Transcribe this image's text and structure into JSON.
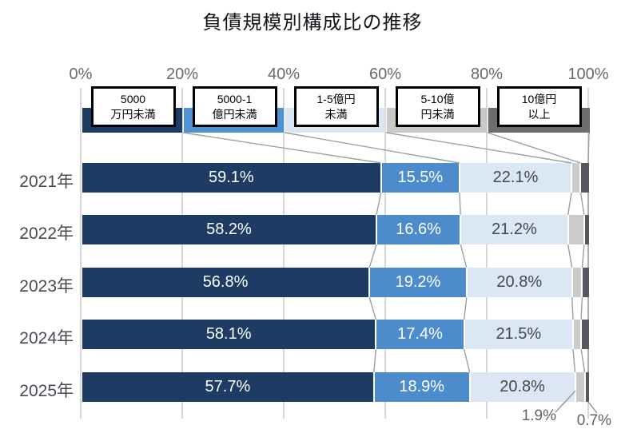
{
  "title": "負債規模別構成比の推移",
  "chart_data": {
    "type": "bar",
    "orientation": "horizontal",
    "stacked": true,
    "unit": "%",
    "title": "負債規模別構成比の推移",
    "categories": [
      "2021年",
      "2022年",
      "2023年",
      "2024年",
      "2025年"
    ],
    "series": [
      {
        "name": "5000万円未満",
        "legend_label_lines": [
          "5000",
          "万円未満"
        ],
        "color": "#1e3c63",
        "legend_color": "#1e3c63",
        "label_color": "#ffffff",
        "values": [
          59.1,
          58.2,
          56.8,
          58.1,
          57.7
        ],
        "data_labels": [
          "59.1%",
          "58.2%",
          "56.8%",
          "58.1%",
          "57.7%"
        ]
      },
      {
        "name": "5000-1億円未満",
        "legend_label_lines": [
          "5000-1",
          "億円未満"
        ],
        "color": "#4c8ccd",
        "legend_color": "#4f93d4",
        "label_color": "#ffffff",
        "values": [
          15.5,
          16.6,
          19.2,
          17.4,
          18.9
        ],
        "data_labels": [
          "15.5%",
          "16.6%",
          "19.2%",
          "17.4%",
          "18.9%"
        ]
      },
      {
        "name": "1-5億円未満",
        "legend_label_lines": [
          "1-5億円",
          "未満"
        ],
        "color": "#dbe7f4",
        "legend_color": "#d9e5f2",
        "label_color": "#43474e",
        "values": [
          22.1,
          21.2,
          20.8,
          21.5,
          20.8
        ],
        "data_labels": [
          "22.1%",
          "21.2%",
          "20.8%",
          "21.5%",
          "20.8%"
        ]
      },
      {
        "name": "5-10億円未満",
        "legend_label_lines": [
          "5-10億",
          "円未満"
        ],
        "color": "#cbcbcb",
        "legend_color": "#c9c9c9",
        "label_color": "#5e6266",
        "values": [
          1.8,
          3.2,
          2.0,
          1.6,
          1.9
        ],
        "data_labels": [
          null,
          null,
          null,
          null,
          null
        ]
      },
      {
        "name": "10億円以上",
        "legend_label_lines": [
          "10億円",
          "以上"
        ],
        "color": "#54575d",
        "legend_color": "#6d6d6d",
        "label_color": "#5e6266",
        "values": [
          1.5,
          0.8,
          1.2,
          1.4,
          0.7
        ],
        "data_labels": [
          null,
          null,
          null,
          null,
          null
        ]
      }
    ],
    "x_axis": {
      "tick_labels": [
        "0%",
        "20%",
        "40%",
        "60%",
        "80%",
        "100%"
      ],
      "range": [
        0,
        100
      ],
      "grid": true
    },
    "annotations": [
      {
        "text": "1.9%",
        "category": "2025年",
        "series": "5-10億円未満"
      },
      {
        "text": "0.7%",
        "category": "2025年",
        "series": "10億円以上"
      }
    ],
    "legend_position": "top"
  }
}
